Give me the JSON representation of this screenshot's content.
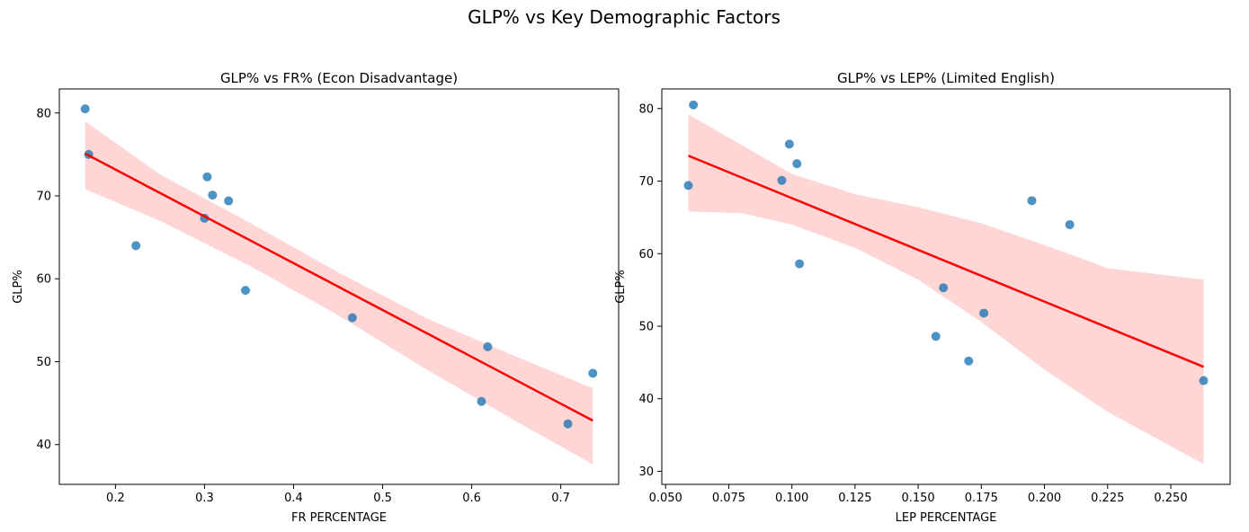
{
  "figure": {
    "suptitle": "GLP% vs Key Demographic Factors"
  },
  "colors": {
    "scatter": "#1f77b4",
    "fit_line": "#ff0000",
    "ci_band": "#ffcccc",
    "axis": "#000000"
  },
  "chart_data": [
    {
      "type": "scatter",
      "title": "GLP% vs FR% (Econ Disadvantage)",
      "xlabel": "FR PERCENTAGE",
      "ylabel": "GLP%",
      "xlim": [
        0.137,
        0.765
      ],
      "ylim": [
        35.2,
        82.9
      ],
      "xticks": [
        0.2,
        0.3,
        0.4,
        0.5,
        0.6,
        0.7
      ],
      "xtick_labels": [
        "0.2",
        "0.3",
        "0.4",
        "0.5",
        "0.6",
        "0.7"
      ],
      "yticks": [
        40,
        50,
        60,
        70,
        80
      ],
      "ytick_labels": [
        "40",
        "50",
        "60",
        "70",
        "80"
      ],
      "grid": false,
      "points": [
        {
          "x": 0.166,
          "y": 80.5
        },
        {
          "x": 0.17,
          "y": 75.0
        },
        {
          "x": 0.223,
          "y": 64.0
        },
        {
          "x": 0.3,
          "y": 67.3
        },
        {
          "x": 0.303,
          "y": 72.3
        },
        {
          "x": 0.309,
          "y": 70.1
        },
        {
          "x": 0.327,
          "y": 69.4
        },
        {
          "x": 0.346,
          "y": 58.6
        },
        {
          "x": 0.466,
          "y": 55.3
        },
        {
          "x": 0.611,
          "y": 45.2
        },
        {
          "x": 0.618,
          "y": 51.8
        },
        {
          "x": 0.708,
          "y": 42.5
        },
        {
          "x": 0.736,
          "y": 48.6
        }
      ],
      "fit": {
        "x": [
          0.166,
          0.736
        ],
        "y": [
          75.1,
          42.9
        ]
      },
      "ci": {
        "x": [
          0.166,
          0.25,
          0.35,
          0.45,
          0.55,
          0.65,
          0.736
        ],
        "upper": [
          79.0,
          72.6,
          66.8,
          60.8,
          55.2,
          50.6,
          46.8
        ],
        "lower": [
          70.8,
          67.0,
          61.6,
          55.6,
          49.0,
          42.8,
          37.6
        ]
      }
    },
    {
      "type": "scatter",
      "title": "GLP% vs LEP% (Limited English)",
      "xlabel": "LEP PERCENTAGE",
      "ylabel": "GLP%",
      "xlim": [
        0.0485,
        0.2735
      ],
      "ylim": [
        28.2,
        82.7
      ],
      "xticks": [
        0.05,
        0.075,
        0.1,
        0.125,
        0.15,
        0.175,
        0.2,
        0.225,
        0.25
      ],
      "xtick_labels": [
        "0.050",
        "0.075",
        "0.100",
        "0.125",
        "0.150",
        "0.175",
        "0.200",
        "0.225",
        "0.250"
      ],
      "yticks": [
        30,
        40,
        50,
        60,
        70,
        80
      ],
      "ytick_labels": [
        "30",
        "40",
        "50",
        "60",
        "70",
        "80"
      ],
      "grid": false,
      "points": [
        {
          "x": 0.059,
          "y": 69.4
        },
        {
          "x": 0.061,
          "y": 80.5
        },
        {
          "x": 0.096,
          "y": 70.1
        },
        {
          "x": 0.099,
          "y": 75.1
        },
        {
          "x": 0.102,
          "y": 72.4
        },
        {
          "x": 0.103,
          "y": 58.6
        },
        {
          "x": 0.157,
          "y": 48.6
        },
        {
          "x": 0.16,
          "y": 55.3
        },
        {
          "x": 0.17,
          "y": 45.2
        },
        {
          "x": 0.176,
          "y": 51.8
        },
        {
          "x": 0.195,
          "y": 67.3
        },
        {
          "x": 0.21,
          "y": 64.0
        },
        {
          "x": 0.263,
          "y": 42.5
        }
      ],
      "fit": {
        "x": [
          0.059,
          0.263
        ],
        "y": [
          73.5,
          44.4
        ]
      },
      "ci": {
        "x": [
          0.059,
          0.08,
          0.1,
          0.125,
          0.15,
          0.175,
          0.2,
          0.225,
          0.263
        ],
        "upper": [
          79.2,
          75.0,
          71.0,
          68.2,
          66.4,
          64.2,
          61.2,
          58.0,
          56.4
        ],
        "lower": [
          65.8,
          65.6,
          64.0,
          60.8,
          56.4,
          50.6,
          44.0,
          38.2,
          31.0
        ]
      }
    }
  ]
}
